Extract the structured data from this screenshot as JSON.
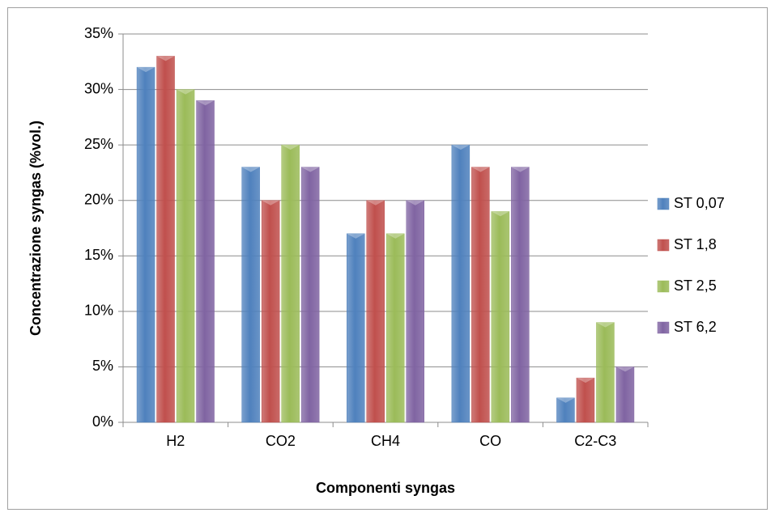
{
  "chart_data": {
    "type": "bar",
    "y_label": "Concentrazione syngas (%vol.)",
    "x_label": "Componenti syngas",
    "categories": [
      "H2",
      "CO2",
      "CH4",
      "CO",
      "C2-C3"
    ],
    "series": [
      {
        "name": "ST 0,07",
        "color": "#4f81bd",
        "values": [
          32,
          23,
          17,
          25,
          2.2
        ]
      },
      {
        "name": "ST 1,8",
        "color": "#c0504d",
        "values": [
          33,
          20,
          20,
          23,
          4
        ]
      },
      {
        "name": "ST 2,5",
        "color": "#9bbb59",
        "values": [
          30,
          25,
          17,
          19,
          9
        ]
      },
      {
        "name": "ST 6,2",
        "color": "#8064a2",
        "values": [
          29,
          23,
          20,
          23,
          5
        ]
      }
    ],
    "ylim": [
      0,
      35
    ],
    "yticks": [
      {
        "value": 0,
        "label": "0%"
      },
      {
        "value": 5,
        "label": "5%"
      },
      {
        "value": 10,
        "label": "10%"
      },
      {
        "value": 15,
        "label": "15%"
      },
      {
        "value": 20,
        "label": "20%"
      },
      {
        "value": 25,
        "label": "25%"
      },
      {
        "value": 30,
        "label": "30%"
      },
      {
        "value": 35,
        "label": "35%"
      }
    ],
    "grid": true,
    "legend": "right"
  }
}
